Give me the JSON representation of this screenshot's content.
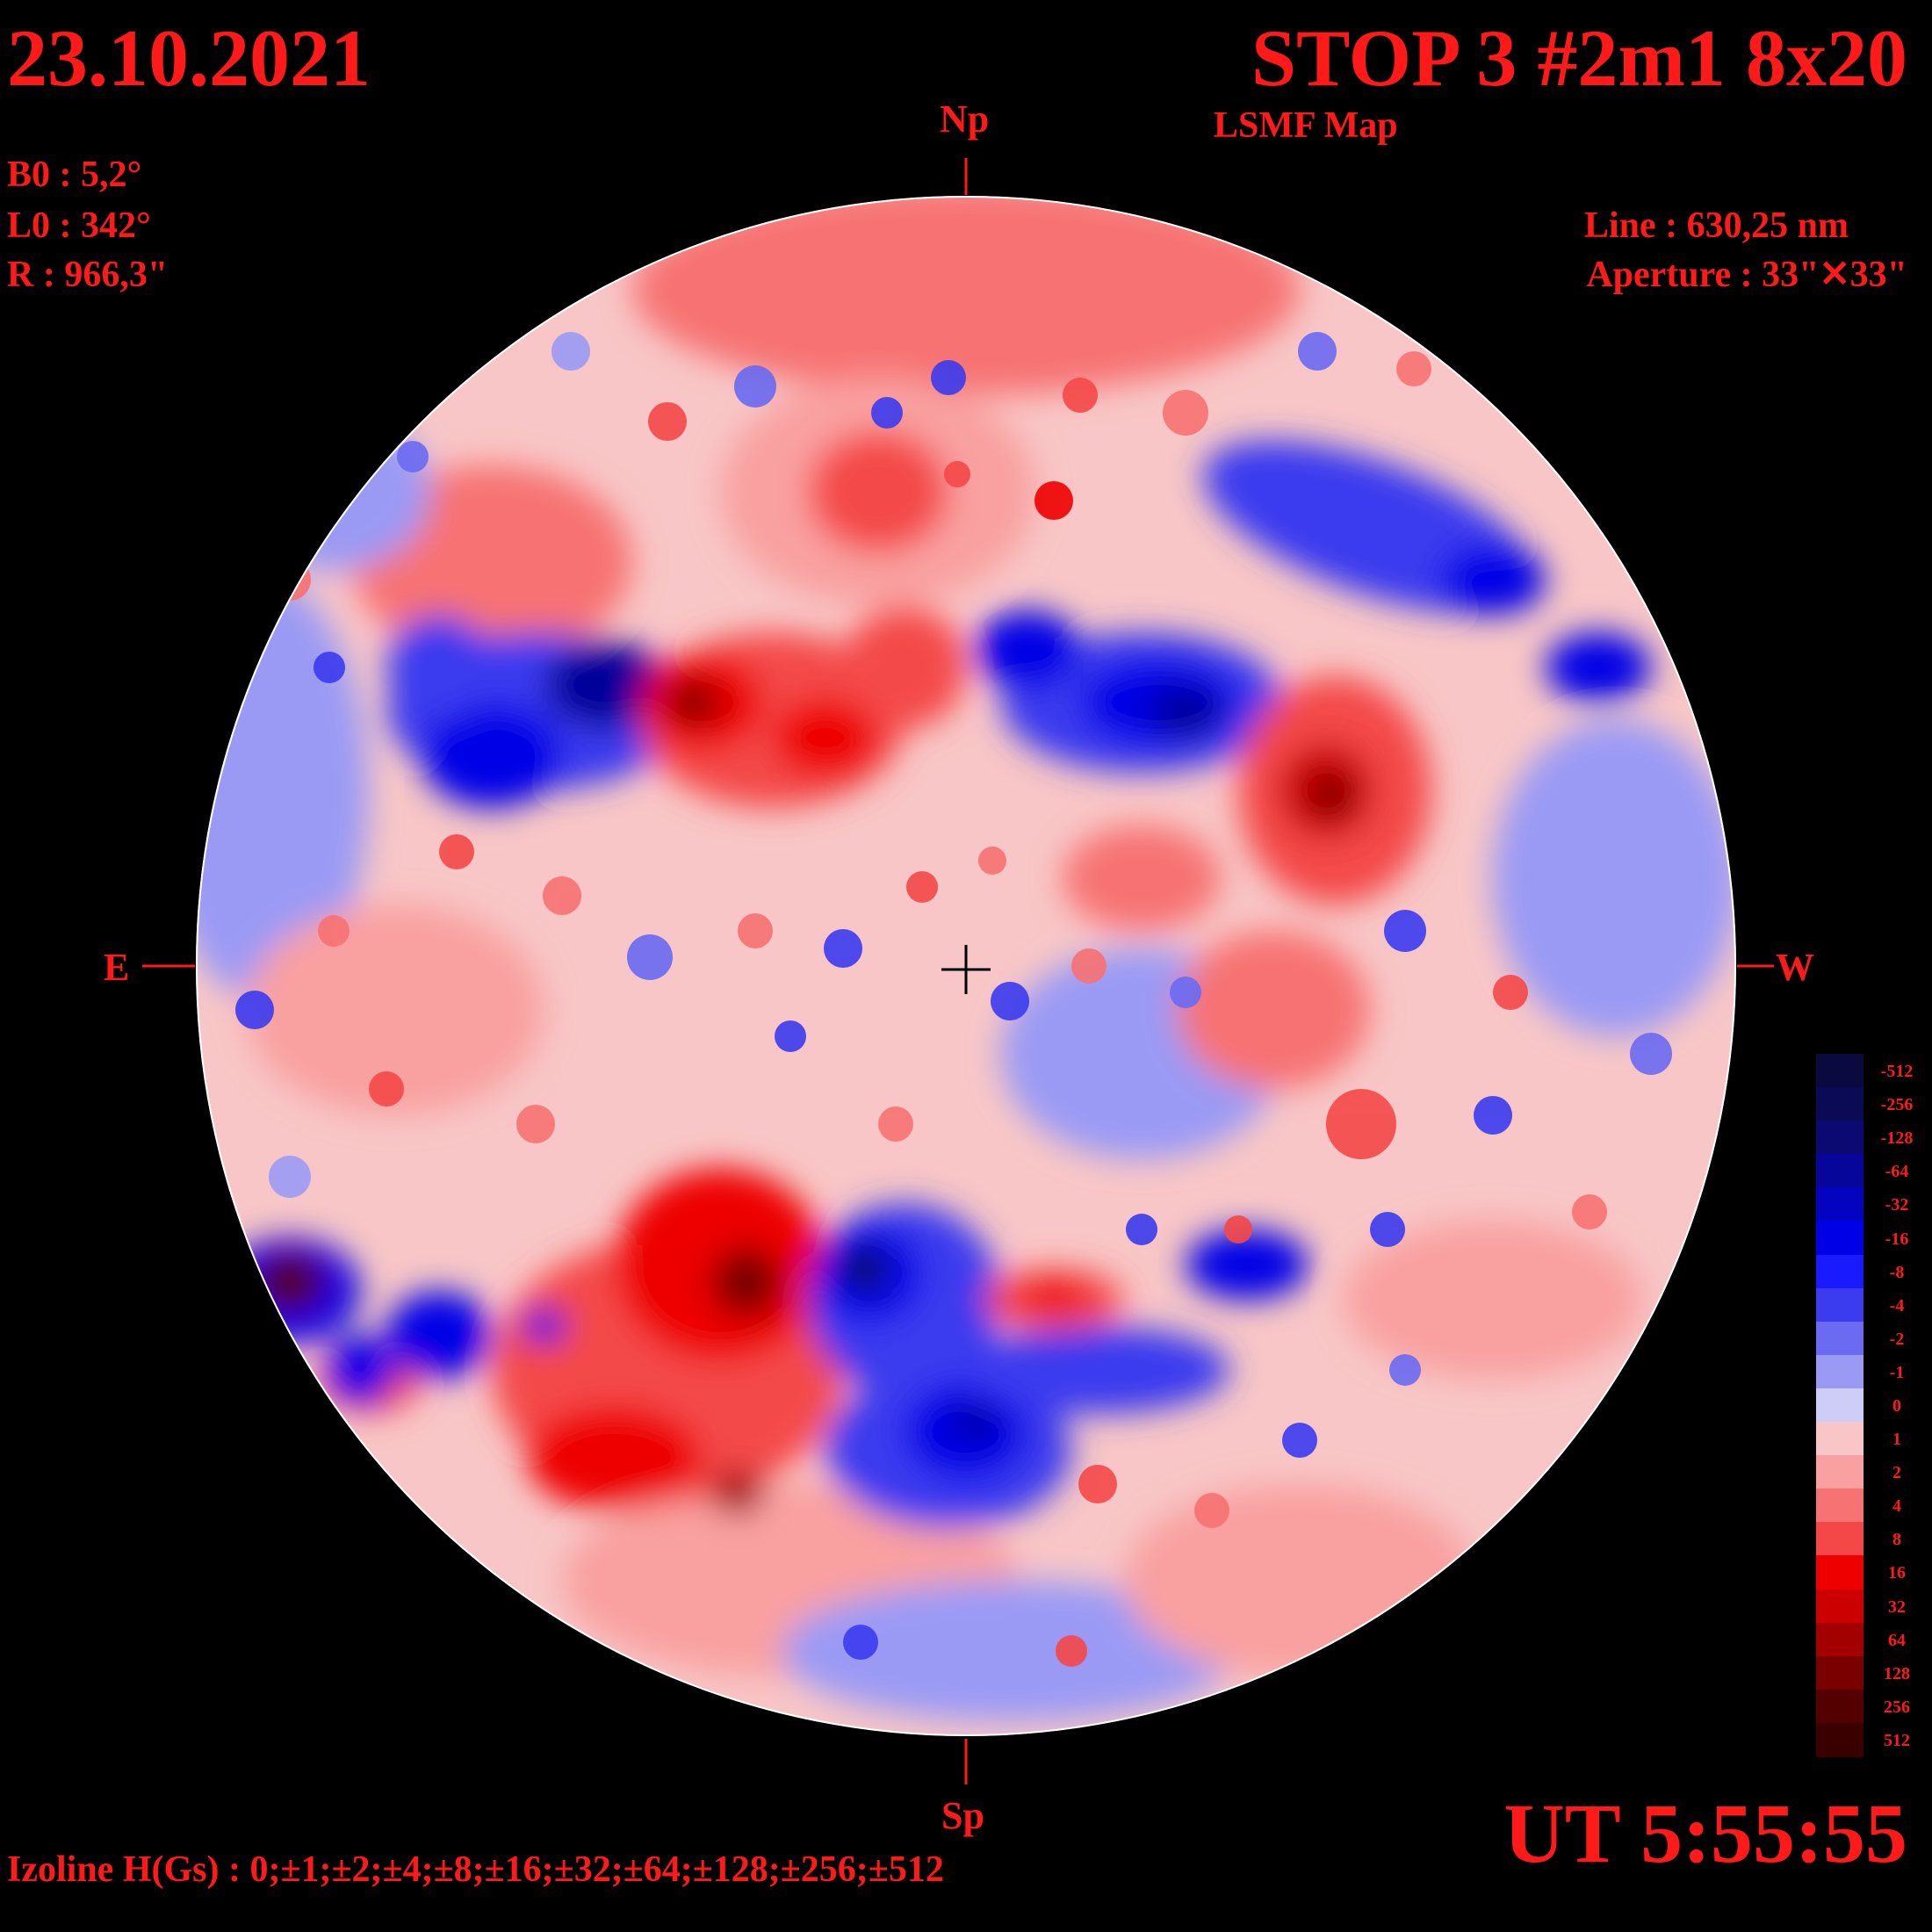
{
  "header": {
    "date": "23.10.2021",
    "title": "STOP 3 #2m1 8x20",
    "subtitle": "LSMF  Map"
  },
  "parameters": {
    "b0": "B0 : 5,2°",
    "l0": "L0 : 342°",
    "r": "R  : 966,3\"",
    "line": "Line :  630,25 nm",
    "aperture": "Aperture : 33\"✕33\""
  },
  "orientation": {
    "north": "Np",
    "south": "Sp",
    "east": "E",
    "west": "W"
  },
  "footer": {
    "time": "UT 5:55:55",
    "izoline": "Izoline H(Gs) : 0;±1;±2;±4;±8;±16;±32;±64;±128;±256;±512"
  },
  "colorbar": {
    "labels": [
      "-512",
      "-256",
      "-128",
      "-64",
      "-32",
      "-16",
      "-8",
      "-4",
      "-2",
      "-1",
      "0",
      "1",
      "2",
      "4",
      "8",
      "16",
      "32",
      "64",
      "128",
      "256",
      "512"
    ],
    "colors": [
      "#0a0a40",
      "#0b0b55",
      "#0a0a72",
      "#06069a",
      "#0303c0",
      "#0000e6",
      "#1a1aff",
      "#3b3bef",
      "#6a6af2",
      "#9a9af5",
      "#cdcdf7",
      "#f8c6c6",
      "#f9a0a0",
      "#f77272",
      "#f44848",
      "#ee0000",
      "#cc0000",
      "#a30000",
      "#7a0000",
      "#550000",
      "#3a0000"
    ]
  }
}
